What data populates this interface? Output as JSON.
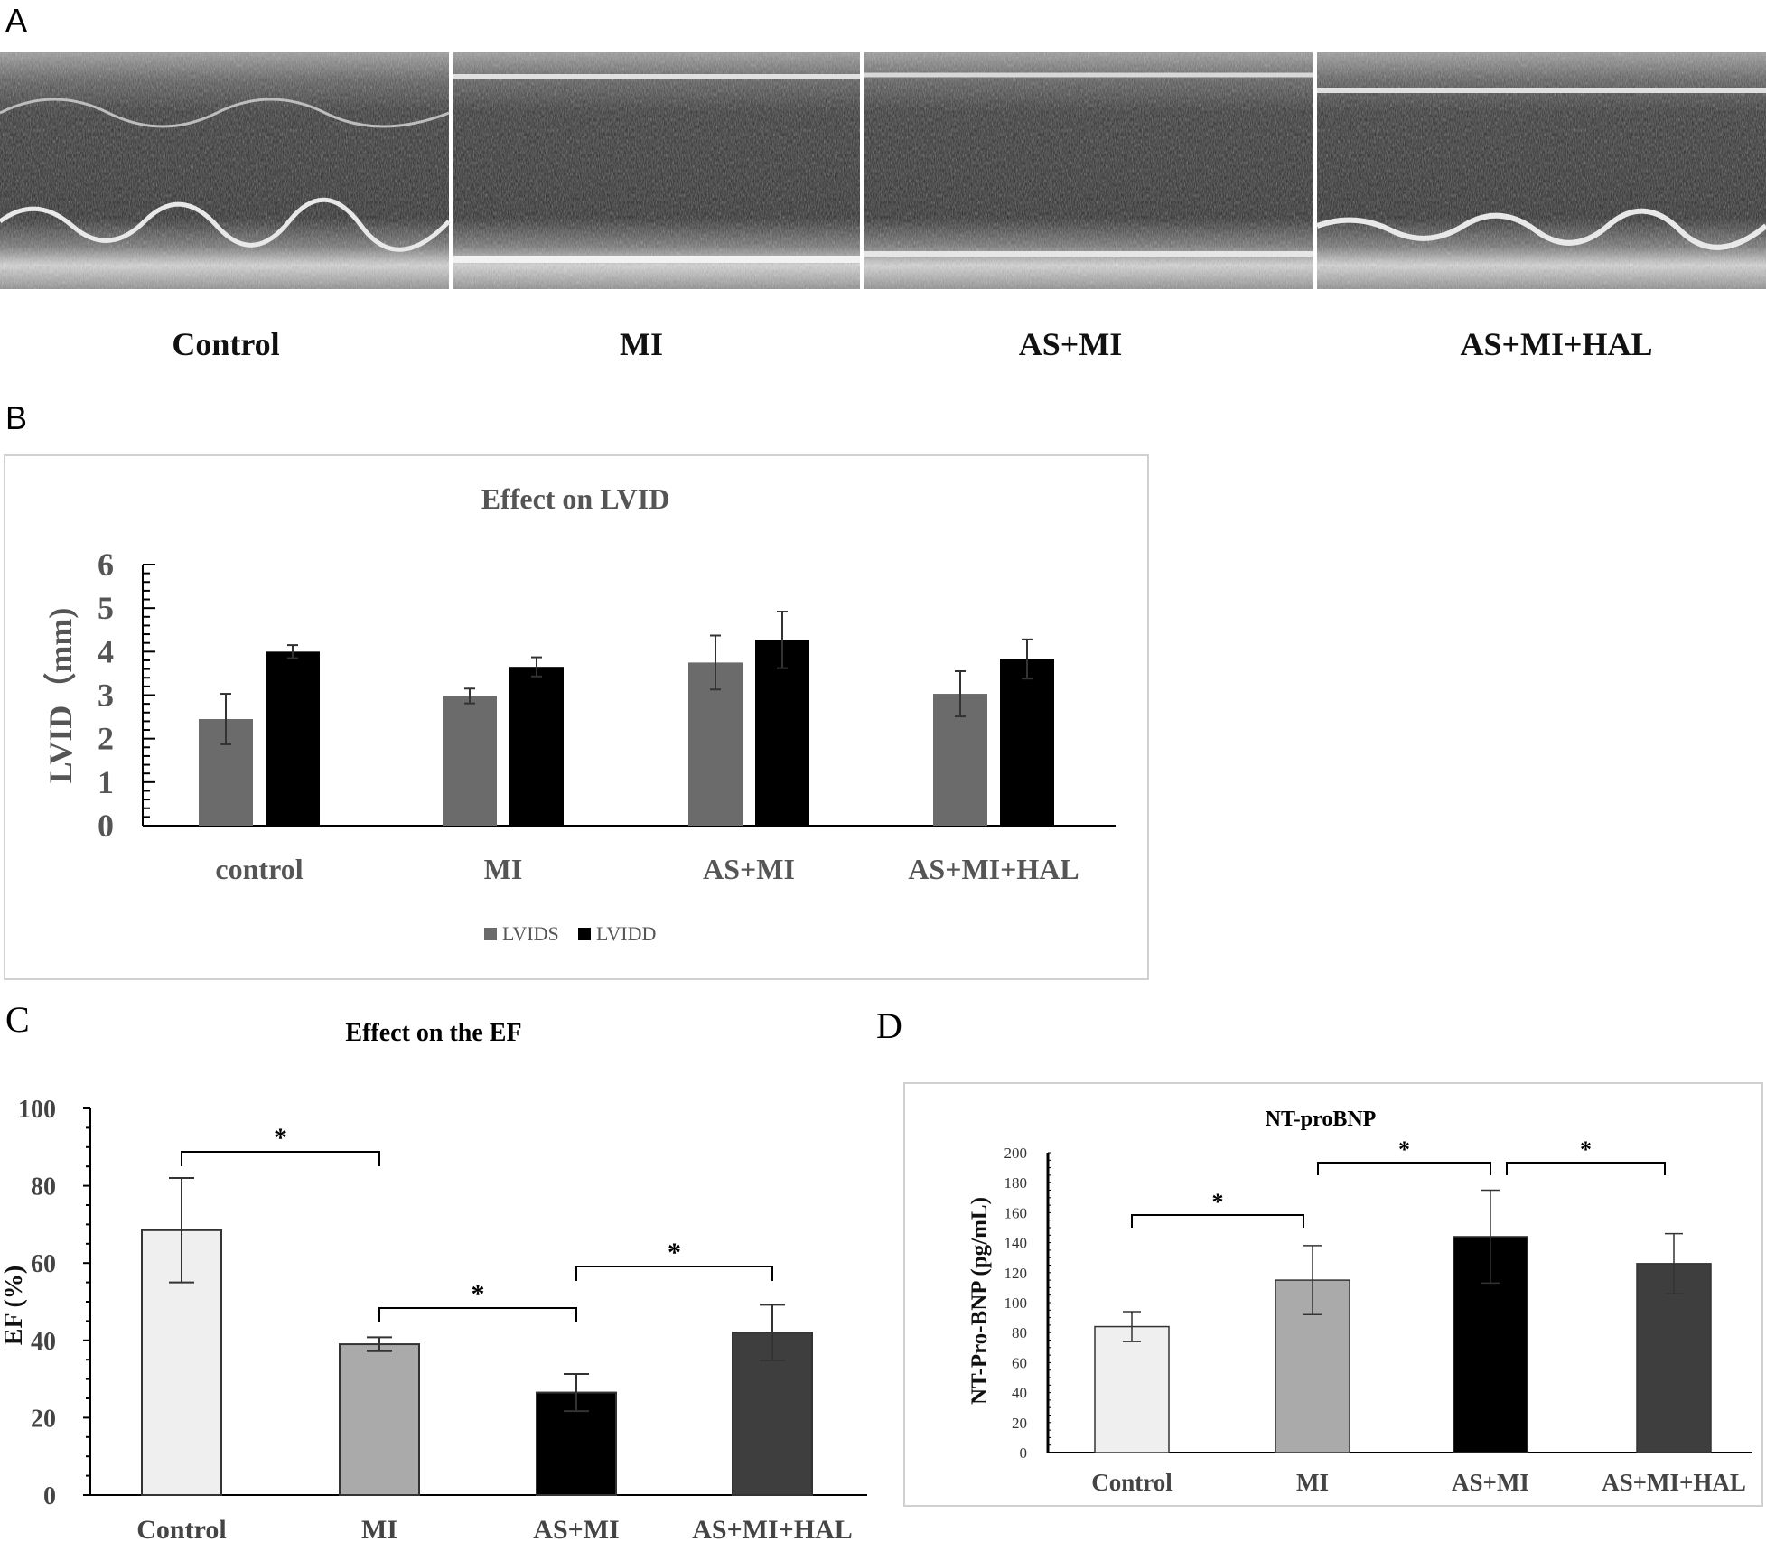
{
  "panel_a": {
    "letter": "A",
    "labels": [
      "Control",
      "MI",
      "AS+MI",
      "AS+MI+HAL"
    ]
  },
  "panel_b": {
    "letter": "B"
  },
  "panel_c": {
    "letter": "C"
  },
  "panel_d": {
    "letter": "D"
  },
  "chart_data": [
    {
      "id": "lvid",
      "type": "bar",
      "title": "Effect on LVID",
      "ylabel": "LVID（mm)",
      "xlabel": "",
      "categories": [
        "control",
        "MI",
        "AS+MI",
        "AS+MI+HAL"
      ],
      "series": [
        {
          "name": "LVIDS",
          "color": "#6b6b6b",
          "values": [
            2.45,
            2.98,
            3.75,
            3.03
          ],
          "errors": [
            0.58,
            0.17,
            0.62,
            0.52
          ]
        },
        {
          "name": "LVIDD",
          "color": "#000000",
          "values": [
            4.0,
            3.65,
            4.27,
            3.83
          ],
          "errors": [
            0.15,
            0.22,
            0.65,
            0.45
          ]
        }
      ],
      "ylim": [
        0,
        6
      ],
      "yticks": [
        0,
        1,
        2,
        3,
        4,
        5,
        6
      ],
      "legend": "bottom-center",
      "grid": false
    },
    {
      "id": "ef",
      "type": "bar",
      "title": "Effect on the EF",
      "ylabel": "EF (%)",
      "xlabel": "",
      "categories": [
        "Control",
        "MI",
        "AS+MI",
        "AS+MI+HAL"
      ],
      "values": [
        68.5,
        39,
        26.5,
        42
      ],
      "errors": [
        13.5,
        1.8,
        4.8,
        7.2
      ],
      "colors": [
        "#efefef",
        "#aaaaaa",
        "#000000",
        "#3e3e3e"
      ],
      "ylim": [
        0,
        100
      ],
      "yticks": [
        0,
        20,
        40,
        60,
        80,
        100
      ],
      "significance": [
        {
          "from": 0,
          "to": 1,
          "label": "*"
        },
        {
          "from": 1,
          "to": 2,
          "label": "*"
        },
        {
          "from": 2,
          "to": 3,
          "label": "*"
        }
      ],
      "grid": false
    },
    {
      "id": "ntprobnp",
      "type": "bar",
      "title": "NT-proBNP",
      "ylabel": "NT-Pro-BNP (pg/mL)",
      "xlabel": "",
      "categories": [
        "Control",
        "MI",
        "AS+MI",
        "AS+MI+HAL"
      ],
      "values": [
        84,
        115,
        144,
        126
      ],
      "errors": [
        10,
        23,
        31,
        20
      ],
      "colors": [
        "#efefef",
        "#aaaaaa",
        "#000000",
        "#3e3e3e"
      ],
      "ylim": [
        0,
        200
      ],
      "yticks": [
        0,
        20,
        40,
        60,
        80,
        100,
        120,
        140,
        160,
        180,
        200
      ],
      "significance": [
        {
          "from": 0,
          "to": 1,
          "label": "*"
        },
        {
          "from": 1,
          "to": 2,
          "label": "*"
        },
        {
          "from": 2,
          "to": 3,
          "label": "*"
        }
      ],
      "grid": false
    }
  ]
}
